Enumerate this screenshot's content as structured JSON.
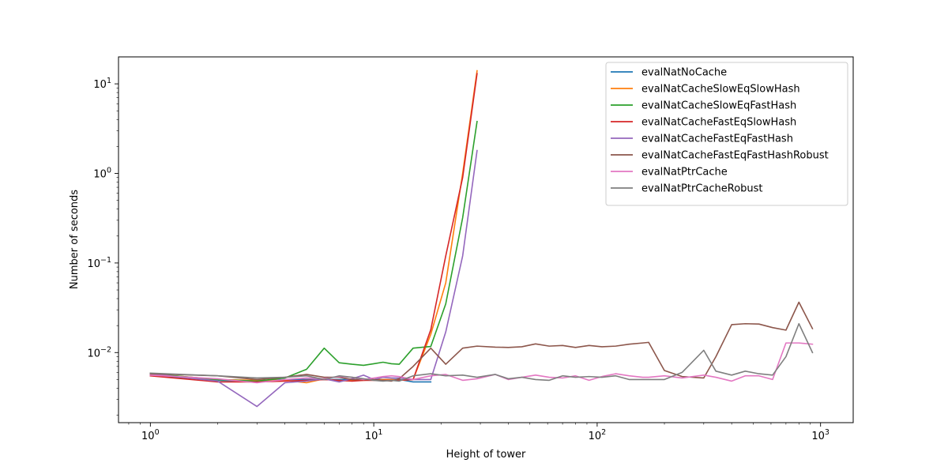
{
  "chart_data": {
    "type": "line",
    "title": "",
    "xlabel": "Height of tower",
    "ylabel": "Number of seconds",
    "xscale": "log",
    "yscale": "log",
    "xlim": [
      0.72,
      1400
    ],
    "ylim": [
      0.00165,
      20
    ],
    "grid": false,
    "legend_position": "top-right",
    "x_ticks": [
      {
        "value": 1,
        "mantissa": "10",
        "exp": "0"
      },
      {
        "value": 10,
        "mantissa": "10",
        "exp": "1"
      },
      {
        "value": 100,
        "mantissa": "10",
        "exp": "2"
      },
      {
        "value": 1000,
        "mantissa": "10",
        "exp": "3"
      }
    ],
    "y_ticks": [
      {
        "value": 0.01,
        "mantissa": "10",
        "exp": "−2"
      },
      {
        "value": 0.1,
        "mantissa": "10",
        "exp": "−1"
      },
      {
        "value": 1,
        "mantissa": "10",
        "exp": "0"
      },
      {
        "value": 10,
        "mantissa": "10",
        "exp": "1"
      }
    ],
    "series": [
      {
        "name": "evalNatNoCache",
        "color": "#1f77b4",
        "x": [
          1,
          2,
          3,
          4,
          5,
          6,
          7,
          8,
          9,
          10,
          11,
          12,
          13,
          15,
          18
        ],
        "y": [
          0.0056,
          0.0049,
          0.0048,
          0.005,
          0.005,
          0.005,
          0.005,
          0.005,
          0.005,
          0.005,
          0.005,
          0.005,
          0.005,
          0.0047,
          0.0047
        ]
      },
      {
        "name": "evalNatCacheSlowEqSlowHash",
        "color": "#ff7f0e",
        "x": [
          1,
          2,
          3,
          4,
          5,
          6,
          7,
          8,
          9,
          10,
          11,
          12,
          13,
          15,
          18,
          21,
          25,
          29
        ],
        "y": [
          0.0058,
          0.005,
          0.0049,
          0.0049,
          0.0046,
          0.0051,
          0.0048,
          0.0049,
          0.0049,
          0.005,
          0.005,
          0.005,
          0.0049,
          0.005,
          0.016,
          0.06,
          1.0,
          14.0
        ]
      },
      {
        "name": "evalNatCacheSlowEqFastHash",
        "color": "#2ca02c",
        "x": [
          1,
          2,
          3,
          4,
          5,
          6,
          7,
          8,
          9,
          10,
          11,
          12,
          13,
          15,
          18,
          21,
          25,
          29
        ],
        "y": [
          0.0058,
          0.005,
          0.0048,
          0.0052,
          0.0065,
          0.0112,
          0.0077,
          0.0074,
          0.0072,
          0.0075,
          0.0078,
          0.0075,
          0.0074,
          0.0112,
          0.0117,
          0.035,
          0.32,
          3.8
        ]
      },
      {
        "name": "evalNatCacheFastEqSlowHash",
        "color": "#d62728",
        "x": [
          1,
          2,
          3,
          4,
          5,
          6,
          7,
          8,
          9,
          10,
          11,
          12,
          13,
          15,
          18,
          21,
          25,
          29
        ],
        "y": [
          0.0055,
          0.0047,
          0.0047,
          0.0048,
          0.0049,
          0.005,
          0.0049,
          0.0048,
          0.0049,
          0.0049,
          0.0049,
          0.0049,
          0.0049,
          0.005,
          0.018,
          0.12,
          0.9,
          13.0
        ]
      },
      {
        "name": "evalNatCacheFastEqFastHash",
        "color": "#9467bd",
        "x": [
          1,
          2,
          3,
          4,
          5,
          6,
          7,
          8,
          9,
          10,
          11,
          12,
          13,
          15,
          18,
          21,
          25,
          29
        ],
        "y": [
          0.0058,
          0.0048,
          0.0025,
          0.0046,
          0.0048,
          0.0051,
          0.0047,
          0.0051,
          0.0056,
          0.005,
          0.0053,
          0.0052,
          0.0052,
          0.005,
          0.005,
          0.017,
          0.12,
          1.8
        ]
      },
      {
        "name": "evalNatCacheFastEqFastHashRobust",
        "color": "#8c564b",
        "x": [
          1,
          2,
          3,
          4,
          5,
          6,
          7,
          8,
          9,
          10,
          11,
          12,
          13,
          15,
          18,
          21,
          25,
          29,
          35,
          40,
          46,
          53,
          61,
          70,
          80,
          92,
          105,
          121,
          139,
          160,
          170,
          200,
          240,
          300,
          340,
          400,
          460,
          530,
          610,
          700,
          800,
          920
        ],
        "y": [
          0.0058,
          0.0055,
          0.005,
          0.0053,
          0.0057,
          0.0053,
          0.0053,
          0.005,
          0.005,
          0.005,
          0.0049,
          0.0048,
          0.0051,
          0.007,
          0.0112,
          0.0074,
          0.0112,
          0.0118,
          0.0115,
          0.0114,
          0.0116,
          0.0125,
          0.0118,
          0.012,
          0.0114,
          0.012,
          0.0116,
          0.0118,
          0.0124,
          0.0128,
          0.013,
          0.0063,
          0.0054,
          0.0052,
          0.009,
          0.0205,
          0.021,
          0.0208,
          0.019,
          0.0178,
          0.0365,
          0.0185
        ]
      },
      {
        "name": "evalNatPtrCache",
        "color": "#e377c2",
        "x": [
          1,
          2,
          3,
          4,
          5,
          6,
          7,
          8,
          9,
          10,
          11,
          12,
          13,
          15,
          18,
          21,
          25,
          29,
          35,
          40,
          46,
          53,
          61,
          70,
          80,
          92,
          105,
          121,
          139,
          160,
          170,
          200,
          240,
          300,
          340,
          400,
          460,
          530,
          610,
          700,
          800,
          920
        ],
        "y": [
          0.0056,
          0.0051,
          0.0046,
          0.005,
          0.0052,
          0.0051,
          0.0054,
          0.0053,
          0.005,
          0.0052,
          0.0054,
          0.0055,
          0.0054,
          0.005,
          0.0055,
          0.0057,
          0.0049,
          0.0051,
          0.0057,
          0.005,
          0.0053,
          0.0056,
          0.0053,
          0.0052,
          0.0055,
          0.0049,
          0.0054,
          0.0058,
          0.0055,
          0.0053,
          0.0053,
          0.0055,
          0.0052,
          0.0056,
          0.0053,
          0.0048,
          0.0055,
          0.0055,
          0.005,
          0.0128,
          0.0128,
          0.0124
        ]
      },
      {
        "name": "evalNatPtrCacheRobust",
        "color": "#7f7f7f",
        "x": [
          1,
          2,
          3,
          4,
          5,
          6,
          7,
          8,
          9,
          10,
          11,
          12,
          13,
          15,
          18,
          21,
          25,
          29,
          35,
          40,
          46,
          53,
          61,
          70,
          80,
          92,
          105,
          121,
          139,
          160,
          170,
          200,
          240,
          300,
          340,
          400,
          460,
          530,
          610,
          700,
          800,
          920
        ],
        "y": [
          0.0059,
          0.0055,
          0.0052,
          0.0053,
          0.0055,
          0.005,
          0.0055,
          0.0053,
          0.0051,
          0.0049,
          0.0048,
          0.0049,
          0.0048,
          0.0055,
          0.0058,
          0.0055,
          0.0056,
          0.0053,
          0.0057,
          0.0051,
          0.0053,
          0.005,
          0.0049,
          0.0055,
          0.0053,
          0.0054,
          0.0053,
          0.0055,
          0.005,
          0.005,
          0.005,
          0.005,
          0.006,
          0.0106,
          0.0062,
          0.0056,
          0.0062,
          0.0058,
          0.0056,
          0.009,
          0.021,
          0.01
        ]
      }
    ]
  }
}
